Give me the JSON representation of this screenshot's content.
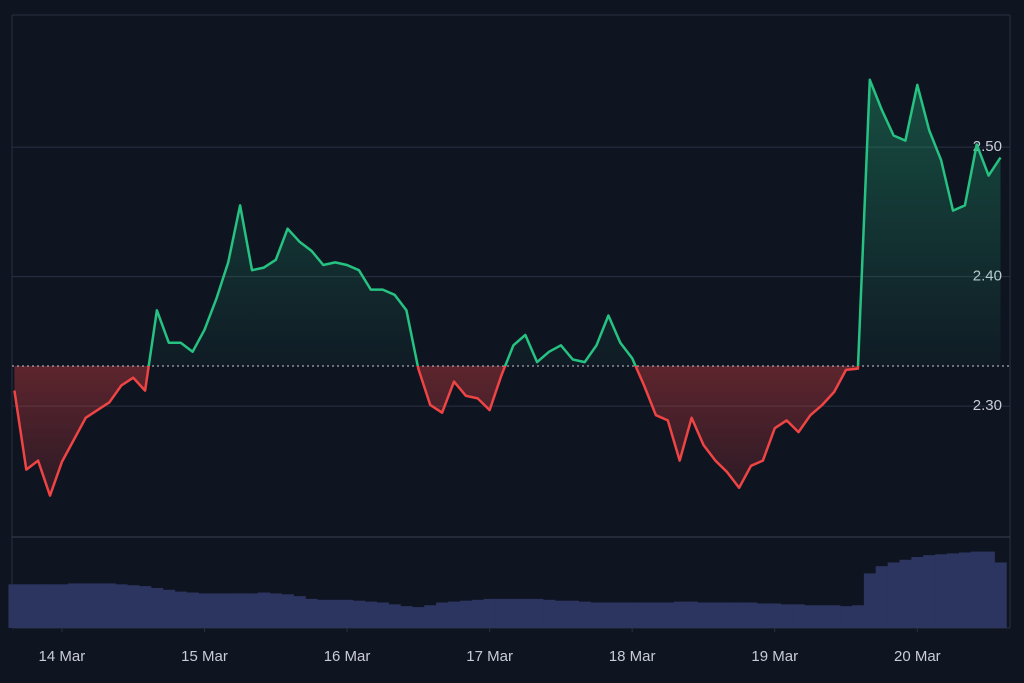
{
  "chart_data": {
    "type": "line",
    "x": [
      -8,
      -6,
      -4,
      -2,
      0,
      2,
      4,
      6,
      8,
      10,
      12,
      14,
      16,
      18,
      20,
      22,
      24,
      26,
      28,
      30,
      32,
      34,
      36,
      38,
      40,
      42,
      44,
      46,
      48,
      50,
      52,
      54,
      56,
      58,
      60,
      62,
      64,
      66,
      68,
      70,
      72,
      74,
      76,
      78,
      80,
      82,
      84,
      86,
      88,
      90,
      92,
      94,
      96,
      98,
      100,
      102,
      104,
      106,
      108,
      110,
      112,
      114,
      116,
      118,
      120,
      122,
      124,
      126,
      128,
      130,
      132,
      134,
      136,
      138,
      140,
      142,
      144,
      146,
      148,
      150,
      152,
      154,
      156,
      158
    ],
    "values": [
      2.312,
      2.251,
      2.258,
      2.231,
      2.257,
      2.274,
      2.291,
      2.297,
      2.303,
      2.316,
      2.322,
      2.312,
      2.374,
      2.349,
      2.349,
      2.342,
      2.359,
      2.383,
      2.411,
      2.455,
      2.405,
      2.407,
      2.413,
      2.437,
      2.427,
      2.42,
      2.409,
      2.411,
      2.409,
      2.405,
      2.39,
      2.39,
      2.386,
      2.374,
      2.329,
      2.301,
      2.295,
      2.319,
      2.308,
      2.306,
      2.297,
      2.324,
      2.347,
      2.355,
      2.334,
      2.342,
      2.347,
      2.336,
      2.334,
      2.347,
      2.37,
      2.349,
      2.337,
      2.316,
      2.293,
      2.289,
      2.258,
      2.291,
      2.27,
      2.258,
      2.249,
      2.237,
      2.254,
      2.258,
      2.283,
      2.289,
      2.28,
      2.293,
      2.301,
      2.311,
      2.328,
      2.329,
      2.552,
      2.529,
      2.509,
      2.505,
      2.548,
      2.513,
      2.49,
      2.451,
      2.455,
      2.502,
      2.478,
      2.492
    ],
    "baseline": 2.331,
    "up_color": "#26c281",
    "down_color": "#ef4444",
    "volume": [
      48,
      48,
      48,
      48,
      48,
      49,
      49,
      49,
      49,
      48,
      47,
      46,
      44,
      42,
      40,
      39,
      38,
      38,
      38,
      38,
      38,
      39,
      38,
      37,
      35,
      32,
      31,
      31,
      31,
      30,
      29,
      28,
      26,
      24,
      23,
      25,
      28,
      29,
      30,
      31,
      32,
      32,
      32,
      32,
      32,
      31,
      30,
      30,
      29,
      28,
      28,
      28,
      28,
      28,
      28,
      28,
      29,
      29,
      28,
      28,
      28,
      28,
      28,
      27,
      27,
      26,
      26,
      25,
      25,
      25,
      24,
      25,
      60,
      68,
      72,
      75,
      78,
      80,
      81,
      82,
      83,
      84,
      84,
      72
    ],
    "volume_color": "#2c3560",
    "vlim": [
      0,
      100
    ],
    "xlim": [
      -8.4,
      159.6
    ],
    "xticks": [
      {
        "value": 0,
        "label": "14 Mar"
      },
      {
        "value": 24,
        "label": "15 Mar"
      },
      {
        "value": 48,
        "label": "16 Mar"
      },
      {
        "value": 72,
        "label": "17 Mar"
      },
      {
        "value": 96,
        "label": "18 Mar"
      },
      {
        "value": 120,
        "label": "19 Mar"
      },
      {
        "value": 144,
        "label": "20 Mar"
      }
    ],
    "ylim": [
      2.199,
      2.602
    ],
    "yticks": [
      {
        "value": 2.3,
        "label": "2.30"
      },
      {
        "value": 2.4,
        "label": "2.40"
      },
      {
        "value": 2.5,
        "label": "2.50"
      }
    ],
    "grid": true
  }
}
